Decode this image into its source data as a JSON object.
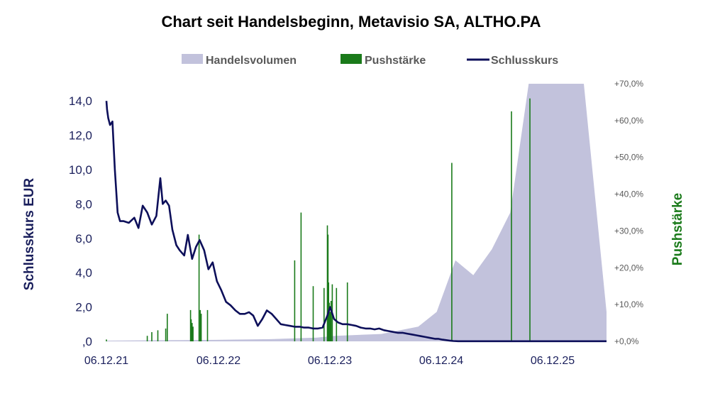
{
  "chart_data": {
    "type": "line",
    "title": "Chart seit Handelsbeginn, Metavisio SA, ALTHO.PA",
    "ylabel": "Schlusskurs EUR",
    "y2label": "Pushstärke",
    "legend_position": "top",
    "grid": false,
    "x_tick_labels": [
      "06.12.21",
      "06.12.22",
      "06.12.23",
      "06.12.24",
      "06.12.25"
    ],
    "x_range": [
      "2021-12-06",
      "2026-06-15"
    ],
    "ylim": [
      0,
      15
    ],
    "y_ticks": [
      0,
      2,
      4,
      6,
      8,
      10,
      12,
      14
    ],
    "y_tick_labels": [
      ",0",
      "2,0",
      "4,0",
      "6,0",
      "8,0",
      "10,0",
      "12,0",
      "14,0"
    ],
    "y2lim": [
      0,
      70
    ],
    "y2_ticks": [
      0,
      10,
      20,
      30,
      40,
      50,
      60,
      70
    ],
    "y2_tick_labels": [
      "+0,0%",
      "+10,0%",
      "+20,0%",
      "+30,0%",
      "+40,0%",
      "+50,0%",
      "+60,0%",
      "+70,0%"
    ],
    "colors": {
      "close": "#0d0f5a",
      "push": "#1a7a1a",
      "volume": "#c2c2dc"
    },
    "series": [
      {
        "name": "Schlusskurs",
        "axis": "left",
        "x": [
          "2021-12-06",
          "2021-12-08",
          "2021-12-12",
          "2021-12-18",
          "2021-12-26",
          "2022-01-03",
          "2022-01-12",
          "2022-01-20",
          "2022-02-01",
          "2022-02-18",
          "2022-03-08",
          "2022-03-22",
          "2022-04-05",
          "2022-04-20",
          "2022-05-05",
          "2022-05-20",
          "2022-06-02",
          "2022-06-10",
          "2022-06-20",
          "2022-07-01",
          "2022-07-12",
          "2022-07-25",
          "2022-08-05",
          "2022-08-20",
          "2022-09-01",
          "2022-09-15",
          "2022-09-28",
          "2022-10-10",
          "2022-10-25",
          "2022-11-08",
          "2022-11-22",
          "2022-12-06",
          "2022-12-20",
          "2023-01-05",
          "2023-01-20",
          "2023-02-05",
          "2023-02-20",
          "2023-03-08",
          "2023-03-22",
          "2023-04-05",
          "2023-04-20",
          "2023-05-05",
          "2023-05-20",
          "2023-06-05",
          "2023-06-20",
          "2023-07-05",
          "2023-07-20",
          "2023-08-05",
          "2023-08-20",
          "2023-09-05",
          "2023-09-20",
          "2023-10-05",
          "2023-10-20",
          "2023-11-05",
          "2023-11-20",
          "2023-12-06",
          "2023-12-15",
          "2023-12-28",
          "2024-01-10",
          "2024-01-25",
          "2024-02-10",
          "2024-02-25",
          "2024-03-10",
          "2024-03-25",
          "2024-04-10",
          "2024-04-25",
          "2024-05-10",
          "2024-05-25",
          "2024-06-10",
          "2024-06-25",
          "2024-07-10",
          "2024-07-25",
          "2024-08-10",
          "2024-08-25",
          "2024-09-10",
          "2024-09-25",
          "2024-10-10",
          "2024-10-25",
          "2024-11-10",
          "2024-11-25",
          "2024-12-06",
          "2024-12-20",
          "2025-01-10",
          "2025-01-25",
          "2025-02-10",
          "2025-03-01",
          "2025-06-01",
          "2025-09-01",
          "2025-12-06",
          "2026-03-01",
          "2026-06-15"
        ],
        "values": [
          14.0,
          13.5,
          13.0,
          12.6,
          12.8,
          10.0,
          7.5,
          7.0,
          7.0,
          6.9,
          7.2,
          6.6,
          7.9,
          7.5,
          6.8,
          7.3,
          9.5,
          8.0,
          8.2,
          7.9,
          6.5,
          5.6,
          5.3,
          5.0,
          6.2,
          4.8,
          5.5,
          5.9,
          5.3,
          4.2,
          4.6,
          3.5,
          3.0,
          2.3,
          2.1,
          1.8,
          1.6,
          1.6,
          1.7,
          1.5,
          0.9,
          1.3,
          1.8,
          1.6,
          1.3,
          1.0,
          0.95,
          0.9,
          0.85,
          0.85,
          0.8,
          0.8,
          0.75,
          0.75,
          0.8,
          1.5,
          2.0,
          1.3,
          1.1,
          1.0,
          1.0,
          0.95,
          0.9,
          0.8,
          0.75,
          0.75,
          0.7,
          0.75,
          0.65,
          0.6,
          0.55,
          0.5,
          0.5,
          0.45,
          0.4,
          0.35,
          0.3,
          0.25,
          0.2,
          0.15,
          0.15,
          0.1,
          0.05,
          0.02,
          0.01,
          0.01,
          0.01,
          0.01,
          0.01,
          0.01,
          0.01
        ]
      },
      {
        "name": "Pushstärke",
        "axis": "right",
        "type": "bar",
        "x": [
          "2021-12-06",
          "2022-04-20",
          "2022-05-05",
          "2022-05-25",
          "2022-06-20",
          "2022-06-25",
          "2022-09-10",
          "2022-09-12",
          "2022-09-15",
          "2022-09-18",
          "2022-10-08",
          "2022-10-12",
          "2022-10-15",
          "2022-11-05",
          "2023-08-20",
          "2023-09-10",
          "2023-10-20",
          "2023-11-25",
          "2023-12-06",
          "2023-12-08",
          "2023-12-10",
          "2023-12-12",
          "2023-12-15",
          "2023-12-18",
          "2023-12-22",
          "2024-01-05",
          "2024-02-10",
          "2025-01-20",
          "2025-08-05",
          "2025-10-05"
        ],
        "values": [
          0.5,
          1.5,
          2.5,
          3.0,
          3.5,
          7.5,
          8.5,
          6.0,
          5.0,
          4.0,
          29.0,
          8.5,
          7.5,
          8.5,
          22.0,
          35.0,
          15.0,
          14.5,
          31.5,
          29.0,
          16.0,
          10.5,
          8.0,
          11.0,
          15.5,
          14.5,
          16.0,
          48.5,
          62.5,
          66.0
        ]
      },
      {
        "name": "Handelsvolumen",
        "axis": "right",
        "type": "area",
        "x": [
          "2021-12-06",
          "2022-06-01",
          "2022-12-01",
          "2023-06-01",
          "2023-11-01",
          "2024-01-01",
          "2024-06-01",
          "2024-10-01",
          "2024-12-01",
          "2025-02-01",
          "2025-04-01",
          "2025-06-01",
          "2025-08-01",
          "2025-10-01",
          "2025-12-01",
          "2026-02-01",
          "2026-04-01",
          "2026-06-15"
        ],
        "values": [
          0.2,
          0.3,
          0.4,
          0.6,
          1.0,
          1.5,
          2.0,
          4.0,
          8.0,
          22.0,
          18.0,
          25.0,
          35.0,
          70.0,
          70.0,
          70.0,
          70.0,
          8.0
        ]
      }
    ]
  }
}
